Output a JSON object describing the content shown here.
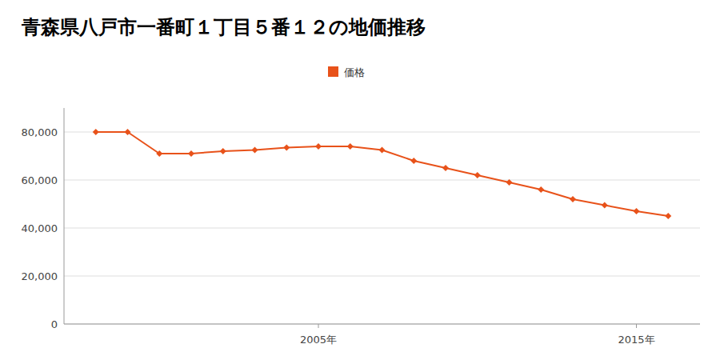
{
  "chart_data": {
    "type": "line",
    "title": "青森県八戸市一番町１丁目５番１２の地価推移",
    "x": [
      1998,
      1999,
      2000,
      2001,
      2002,
      2003,
      2004,
      2005,
      2006,
      2007,
      2008,
      2009,
      2010,
      2011,
      2012,
      2013,
      2014,
      2015,
      2016
    ],
    "series": [
      {
        "name": "価格",
        "color": "#e8521a",
        "marker": "diamond",
        "values": [
          80000,
          80000,
          71000,
          71000,
          72000,
          72500,
          73500,
          74000,
          74000,
          72500,
          68000,
          65000,
          62000,
          59000,
          56000,
          52000,
          49500,
          47000,
          45000
        ]
      }
    ],
    "xlim": [
      1997,
      2017
    ],
    "xticks": [
      {
        "value": 2005,
        "label": "2005年"
      },
      {
        "value": 2015,
        "label": "2015年"
      }
    ],
    "ylim": [
      0,
      90000
    ],
    "yticks": [
      0,
      {
        "value": 20000,
        "label": "20,000"
      },
      {
        "value": 40000,
        "label": "40,000"
      },
      {
        "value": 60000,
        "label": "60,000"
      },
      {
        "value": 80000,
        "label": "80,000"
      }
    ],
    "grid": true,
    "legend": "top"
  }
}
